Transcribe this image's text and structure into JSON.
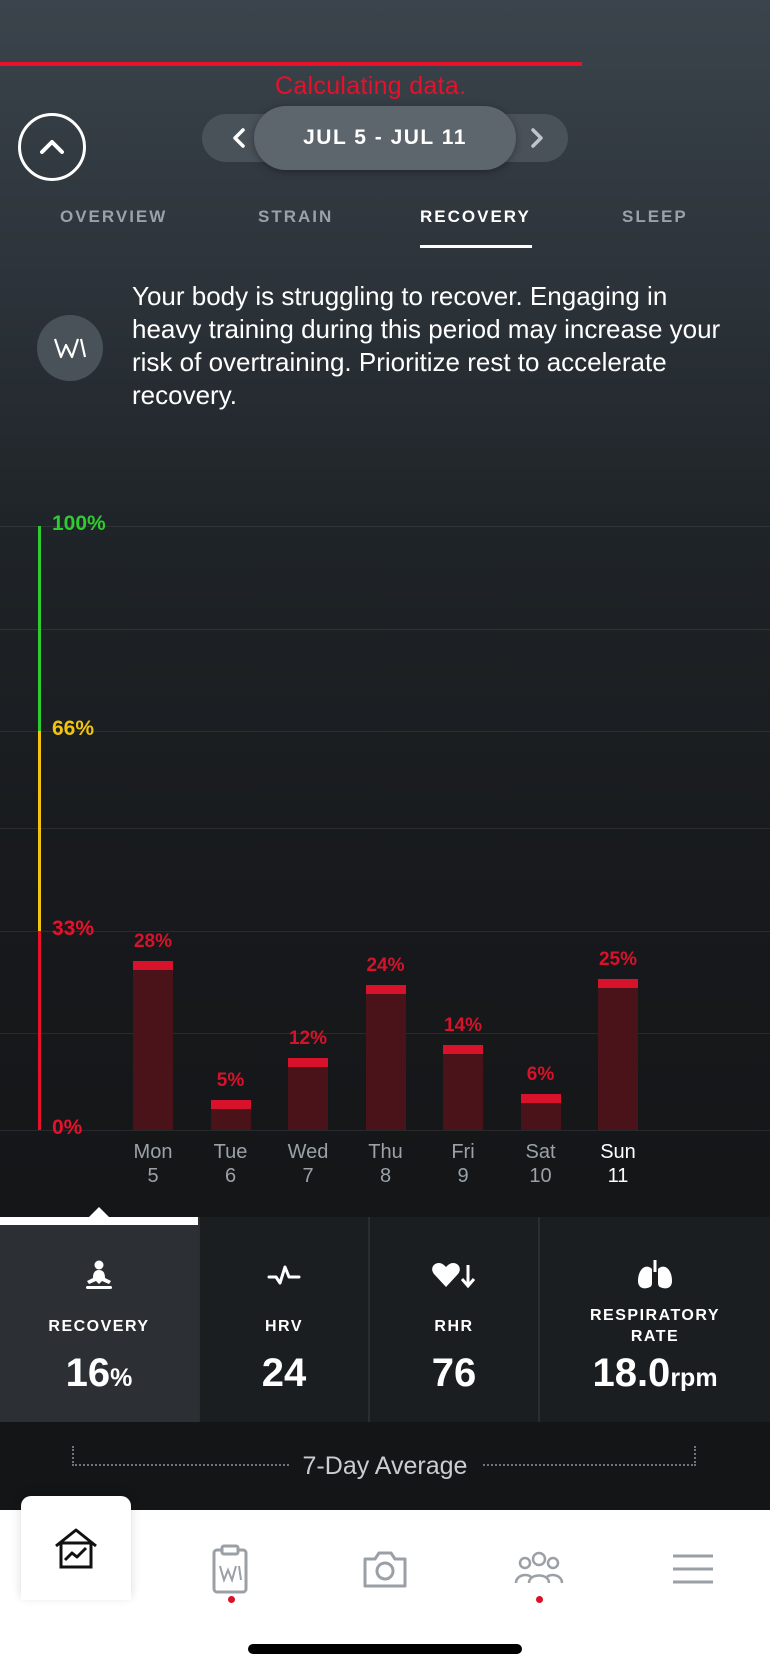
{
  "status": {
    "calculating_text": "Calculating data."
  },
  "date_range": {
    "label": "JUL 5 - JUL 11",
    "prev_icon": "chevron-left-icon",
    "next_icon": "chevron-right-icon"
  },
  "tabs": [
    {
      "label": "OVERVIEW",
      "active": false
    },
    {
      "label": "STRAIN",
      "active": false
    },
    {
      "label": "RECOVERY",
      "active": true
    },
    {
      "label": "SLEEP",
      "active": false
    }
  ],
  "insight": {
    "icon": "whoop-coach-icon",
    "text": "Your body is struggling to recover. Engaging in heavy training during this period may increase your risk of overtraining. Prioritize rest to accelerate recovery."
  },
  "zones": {
    "green": "#2ecc2e",
    "yellow": "#f2c40f",
    "red": "#e8102a"
  },
  "chart_data": {
    "type": "bar",
    "title": "",
    "y_ticks": [
      {
        "label": "100%",
        "value": 100,
        "color": "#2ecc2e"
      },
      {
        "label": "66%",
        "value": 66,
        "color": "#f2c40f"
      },
      {
        "label": "33%",
        "value": 33,
        "color": "#e8102a"
      },
      {
        "label": "0%",
        "value": 0,
        "color": "#e8102a"
      }
    ],
    "ylim": [
      0,
      100
    ],
    "categories": [
      {
        "day": "Mon",
        "date": "5"
      },
      {
        "day": "Tue",
        "date": "6"
      },
      {
        "day": "Wed",
        "date": "7"
      },
      {
        "day": "Thu",
        "date": "8"
      },
      {
        "day": "Fri",
        "date": "9"
      },
      {
        "day": "Sat",
        "date": "10"
      },
      {
        "day": "Sun",
        "date": "11"
      }
    ],
    "values": [
      28,
      5,
      12,
      24,
      14,
      6,
      25
    ],
    "value_labels": [
      "28%",
      "5%",
      "12%",
      "24%",
      "14%",
      "6%",
      "25%"
    ],
    "selected_index": 6,
    "bar_color": "#d8122a"
  },
  "metrics": [
    {
      "icon": "meditation-icon",
      "label": "RECOVERY",
      "value": "16",
      "unit": "%",
      "active": true
    },
    {
      "icon": "heartbeat-icon",
      "label": "HRV",
      "value": "24",
      "unit": "",
      "active": false
    },
    {
      "icon": "heart-down-icon",
      "label": "RHR",
      "value": "76",
      "unit": "",
      "active": false
    },
    {
      "icon": "lungs-icon",
      "label": "RESPIRATORY RATE",
      "value": "18.0",
      "unit": "rpm",
      "active": false
    }
  ],
  "average": {
    "label": "7-Day Average"
  },
  "nav": [
    {
      "icon": "home-chart-icon",
      "active": true,
      "dot": false
    },
    {
      "icon": "journal-clipboard-icon",
      "active": false,
      "dot": true
    },
    {
      "icon": "camera-icon",
      "active": false,
      "dot": false
    },
    {
      "icon": "community-icon",
      "active": false,
      "dot": true
    },
    {
      "icon": "menu-icon",
      "active": false,
      "dot": false
    }
  ]
}
